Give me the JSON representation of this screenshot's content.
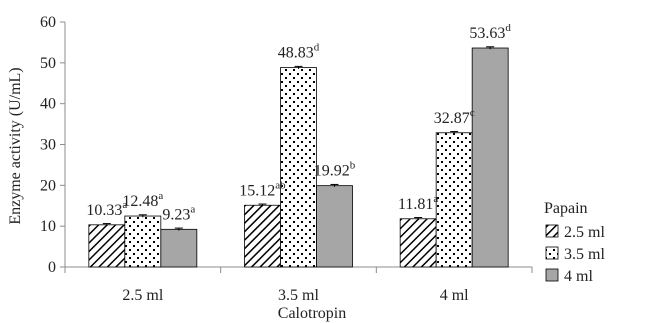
{
  "chart_data": {
    "type": "bar",
    "categories": [
      "2.5 ml",
      "3.5 ml",
      "4 ml"
    ],
    "series": [
      {
        "name": "2.5 ml",
        "pattern": "diagonal-hatch",
        "values": [
          10.33,
          15.12,
          11.81
        ],
        "errors": [
          0.3,
          0.3,
          0.3
        ],
        "labels": [
          {
            "value": "10.33",
            "sup": "a"
          },
          {
            "value": "15.12",
            "sup": "ab"
          },
          {
            "value": "11.81",
            "sup": "a"
          }
        ]
      },
      {
        "name": "3.5 ml",
        "pattern": "dotted",
        "values": [
          12.48,
          48.83,
          32.87
        ],
        "errors": [
          0.3,
          0.3,
          0.3
        ],
        "labels": [
          {
            "value": "12.48",
            "sup": "a"
          },
          {
            "value": "48.83",
            "sup": "d"
          },
          {
            "value": "32.87",
            "sup": "c"
          }
        ]
      },
      {
        "name": "4 ml",
        "pattern": "solid-gray",
        "values": [
          9.23,
          19.92,
          53.63
        ],
        "errors": [
          0.3,
          0.3,
          0.3
        ],
        "labels": [
          {
            "value": "9.23",
            "sup": "a"
          },
          {
            "value": "19.92",
            "sup": "b"
          },
          {
            "value": "53.63",
            "sup": "d"
          }
        ]
      }
    ],
    "xlabel": "Calotropin",
    "ylabel": "Enzyme activity  (U/mL)",
    "ylim": [
      0,
      60
    ],
    "yticks": [
      0,
      10,
      20,
      30,
      40,
      50,
      60
    ],
    "legend_title": "Papain",
    "legend_position": "right",
    "grid": false,
    "colors": {
      "axis": "#8c8c8c",
      "bar_gray": "#a6a6a6",
      "bar_outline": "#000000"
    }
  }
}
